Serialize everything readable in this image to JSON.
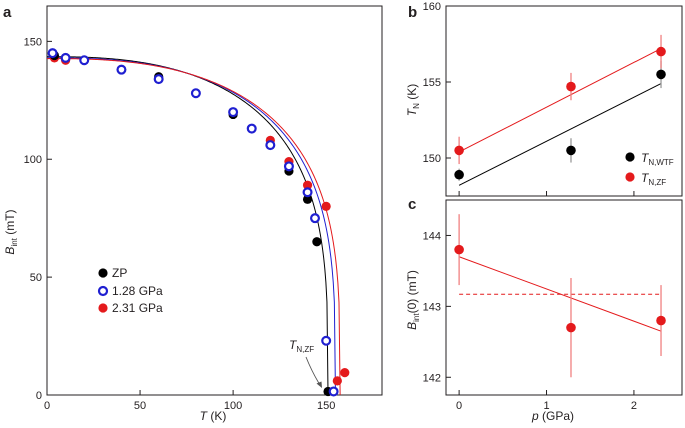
{
  "chart_data": [
    {
      "panel": "a",
      "type": "scatter",
      "xlabel": "T (K)",
      "ylabel": "B_int (mT)",
      "xlim": [
        0,
        180
      ],
      "ylim": [
        0,
        165
      ],
      "xticks": [
        "0",
        "50",
        "100",
        "150"
      ],
      "yticks": [
        "0",
        "50",
        "100",
        "150"
      ],
      "annotation": "T_N,ZF",
      "series": [
        {
          "name": "ZP",
          "marker": "filled",
          "color": "#000000",
          "x": [
            4,
            10,
            20,
            40,
            60,
            80,
            100,
            120,
            130,
            140,
            145,
            151
          ],
          "y": [
            144,
            143,
            142,
            138,
            135,
            128,
            119,
            106,
            95,
            83,
            65,
            1.5
          ]
        },
        {
          "name": "1.28 GPa",
          "marker": "open",
          "color": "#1f1fd1",
          "x": [
            3,
            10,
            20,
            40,
            60,
            80,
            100,
            110,
            120,
            130,
            140,
            144,
            150,
            154
          ],
          "y": [
            145,
            143,
            142,
            138,
            134,
            128,
            120,
            113,
            106,
            97,
            86,
            75,
            23,
            1.5
          ]
        },
        {
          "name": "2.31 GPa",
          "marker": "filled",
          "color": "#e41a1c",
          "x": [
            4,
            10,
            20,
            40,
            60,
            80,
            100,
            120,
            130,
            140,
            150,
            156,
            160
          ],
          "y": [
            143,
            142,
            142,
            138,
            134,
            128,
            120,
            108,
            99,
            89,
            80,
            6,
            9.5
          ]
        }
      ],
      "fits": [
        {
          "series": "ZP",
          "Tc": 151,
          "B0": 143.5,
          "color": "#000000"
        },
        {
          "series": "1.28 GPa",
          "Tc": 155,
          "B0": 143,
          "color": "#1f1fd1"
        },
        {
          "series": "2.31 GPa",
          "Tc": 157.5,
          "B0": 142.7,
          "color": "#e41a1c"
        }
      ]
    },
    {
      "panel": "b",
      "type": "scatter",
      "xlabel": "",
      "ylabel": "T_N (K)",
      "xlim": [
        -0.15,
        2.55
      ],
      "ylim": [
        147.5,
        160
      ],
      "yticks": [
        "150",
        "155",
        "160"
      ],
      "series": [
        {
          "name": "T_N,WTF",
          "color": "#000000",
          "x": [
            0,
            1.28,
            2.31
          ],
          "y": [
            148.9,
            150.5,
            155.5
          ],
          "err": [
            0.4,
            0.8,
            0.9
          ],
          "fit": [
            [
              0,
              148.2
            ],
            [
              2.31,
              154.9
            ]
          ]
        },
        {
          "name": "T_N,ZF",
          "color": "#e41a1c",
          "x": [
            0,
            1.28,
            2.31
          ],
          "y": [
            150.5,
            154.7,
            157
          ],
          "err": [
            0.9,
            0.9,
            1.1
          ],
          "fit": [
            [
              0,
              150.4
            ],
            [
              2.31,
              157.2
            ]
          ]
        }
      ]
    },
    {
      "panel": "c",
      "type": "scatter",
      "xlabel": "p (GPa)",
      "ylabel": "B_int(0) (mT)",
      "xlim": [
        -0.15,
        2.55
      ],
      "ylim": [
        141.75,
        144.5
      ],
      "xticks": [
        "0",
        "1",
        "2"
      ],
      "yticks": [
        "142",
        "143",
        "144"
      ],
      "series": [
        {
          "name": "B_int(0)",
          "color": "#e41a1c",
          "x": [
            0,
            1.28,
            2.31
          ],
          "y": [
            143.8,
            142.7,
            142.8
          ],
          "err": [
            0.5,
            0.7,
            0.5
          ]
        }
      ],
      "fit": [
        [
          0,
          143.7
        ],
        [
          2.31,
          142.65
        ]
      ],
      "mean": 143.17
    }
  ],
  "labels": {
    "panel_a": "a",
    "panel_b": "b",
    "panel_c": "c",
    "a_ylabel_main": "B",
    "a_ylabel_sub": "int",
    "a_ylabel_tail": " (mT)",
    "a_xlabel_var": "T",
    "a_xlabel_tail": " (K)",
    "ann_main": "T",
    "ann_sub": "N,ZF",
    "leg_a_1": "ZP",
    "leg_a_2": "1.28 GPa",
    "leg_a_3": "2.31 GPa",
    "b_ylabel_main": "T",
    "b_ylabel_sub": "N",
    "b_ylabel_tail": " (K)",
    "leg_b_1_main": "T",
    "leg_b_1_sub": "N,WTF",
    "leg_b_2_main": "T",
    "leg_b_2_sub": "N,ZF",
    "c_ylabel_main": "B",
    "c_ylabel_sub": "int",
    "c_ylabel_tail": "(0) (mT)",
    "c_xlabel_var": "p",
    "c_xlabel_tail": " (GPa)"
  },
  "colors": {
    "black": "#000000",
    "blue": "#1f1fd1",
    "red": "#e41a1c",
    "axis": "#231f20"
  }
}
